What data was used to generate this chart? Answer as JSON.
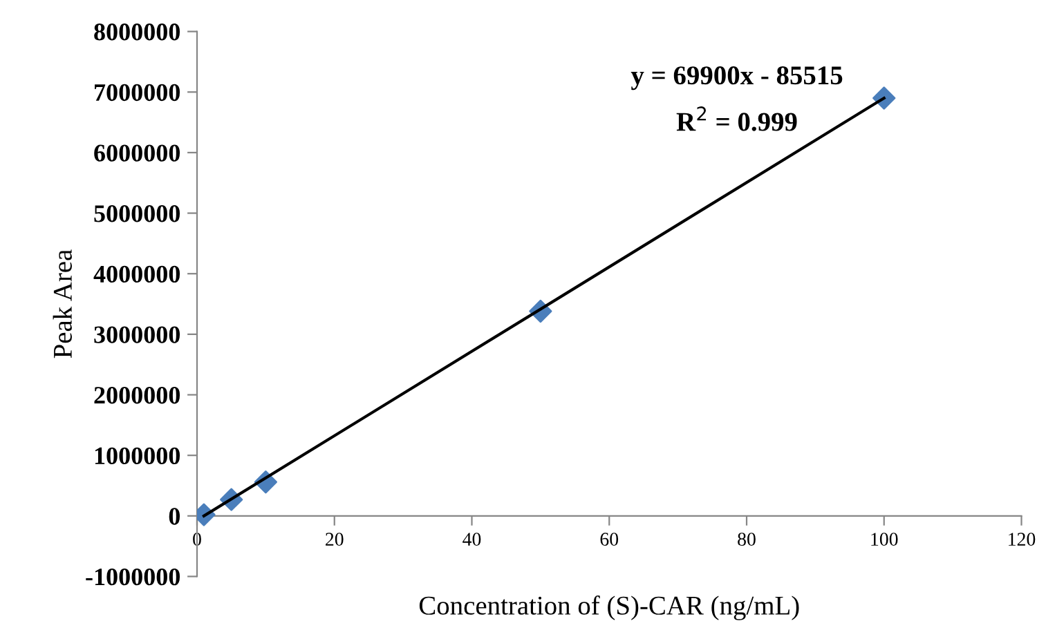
{
  "chart_data": {
    "type": "scatter",
    "xlabel": "Concentration of (S)-CAR (ng/mL)",
    "ylabel": "Peak Area",
    "xlim": [
      0,
      120
    ],
    "xticks": [
      0,
      20,
      40,
      60,
      80,
      100,
      120
    ],
    "ylim": [
      -1000000,
      8000000
    ],
    "yticks": [
      -1000000,
      0,
      1000000,
      2000000,
      3000000,
      4000000,
      5000000,
      6000000,
      7000000,
      8000000
    ],
    "grid": false,
    "legend": false,
    "series": [
      {
        "marker": "diamond",
        "color": "#4a7ebb",
        "x": [
          1,
          5,
          10,
          50,
          100
        ],
        "values": [
          20000,
          270000,
          560000,
          3380000,
          6900000
        ]
      },
      {
        "type": "line",
        "marker": "none",
        "line_style": "solid",
        "color": "#000000",
        "x": [
          1,
          100
        ],
        "values": [
          0,
          6900000
        ]
      }
    ],
    "annotations": [
      "y = 69900x - 85515",
      "R$^{2}$ = 0.999"
    ]
  }
}
